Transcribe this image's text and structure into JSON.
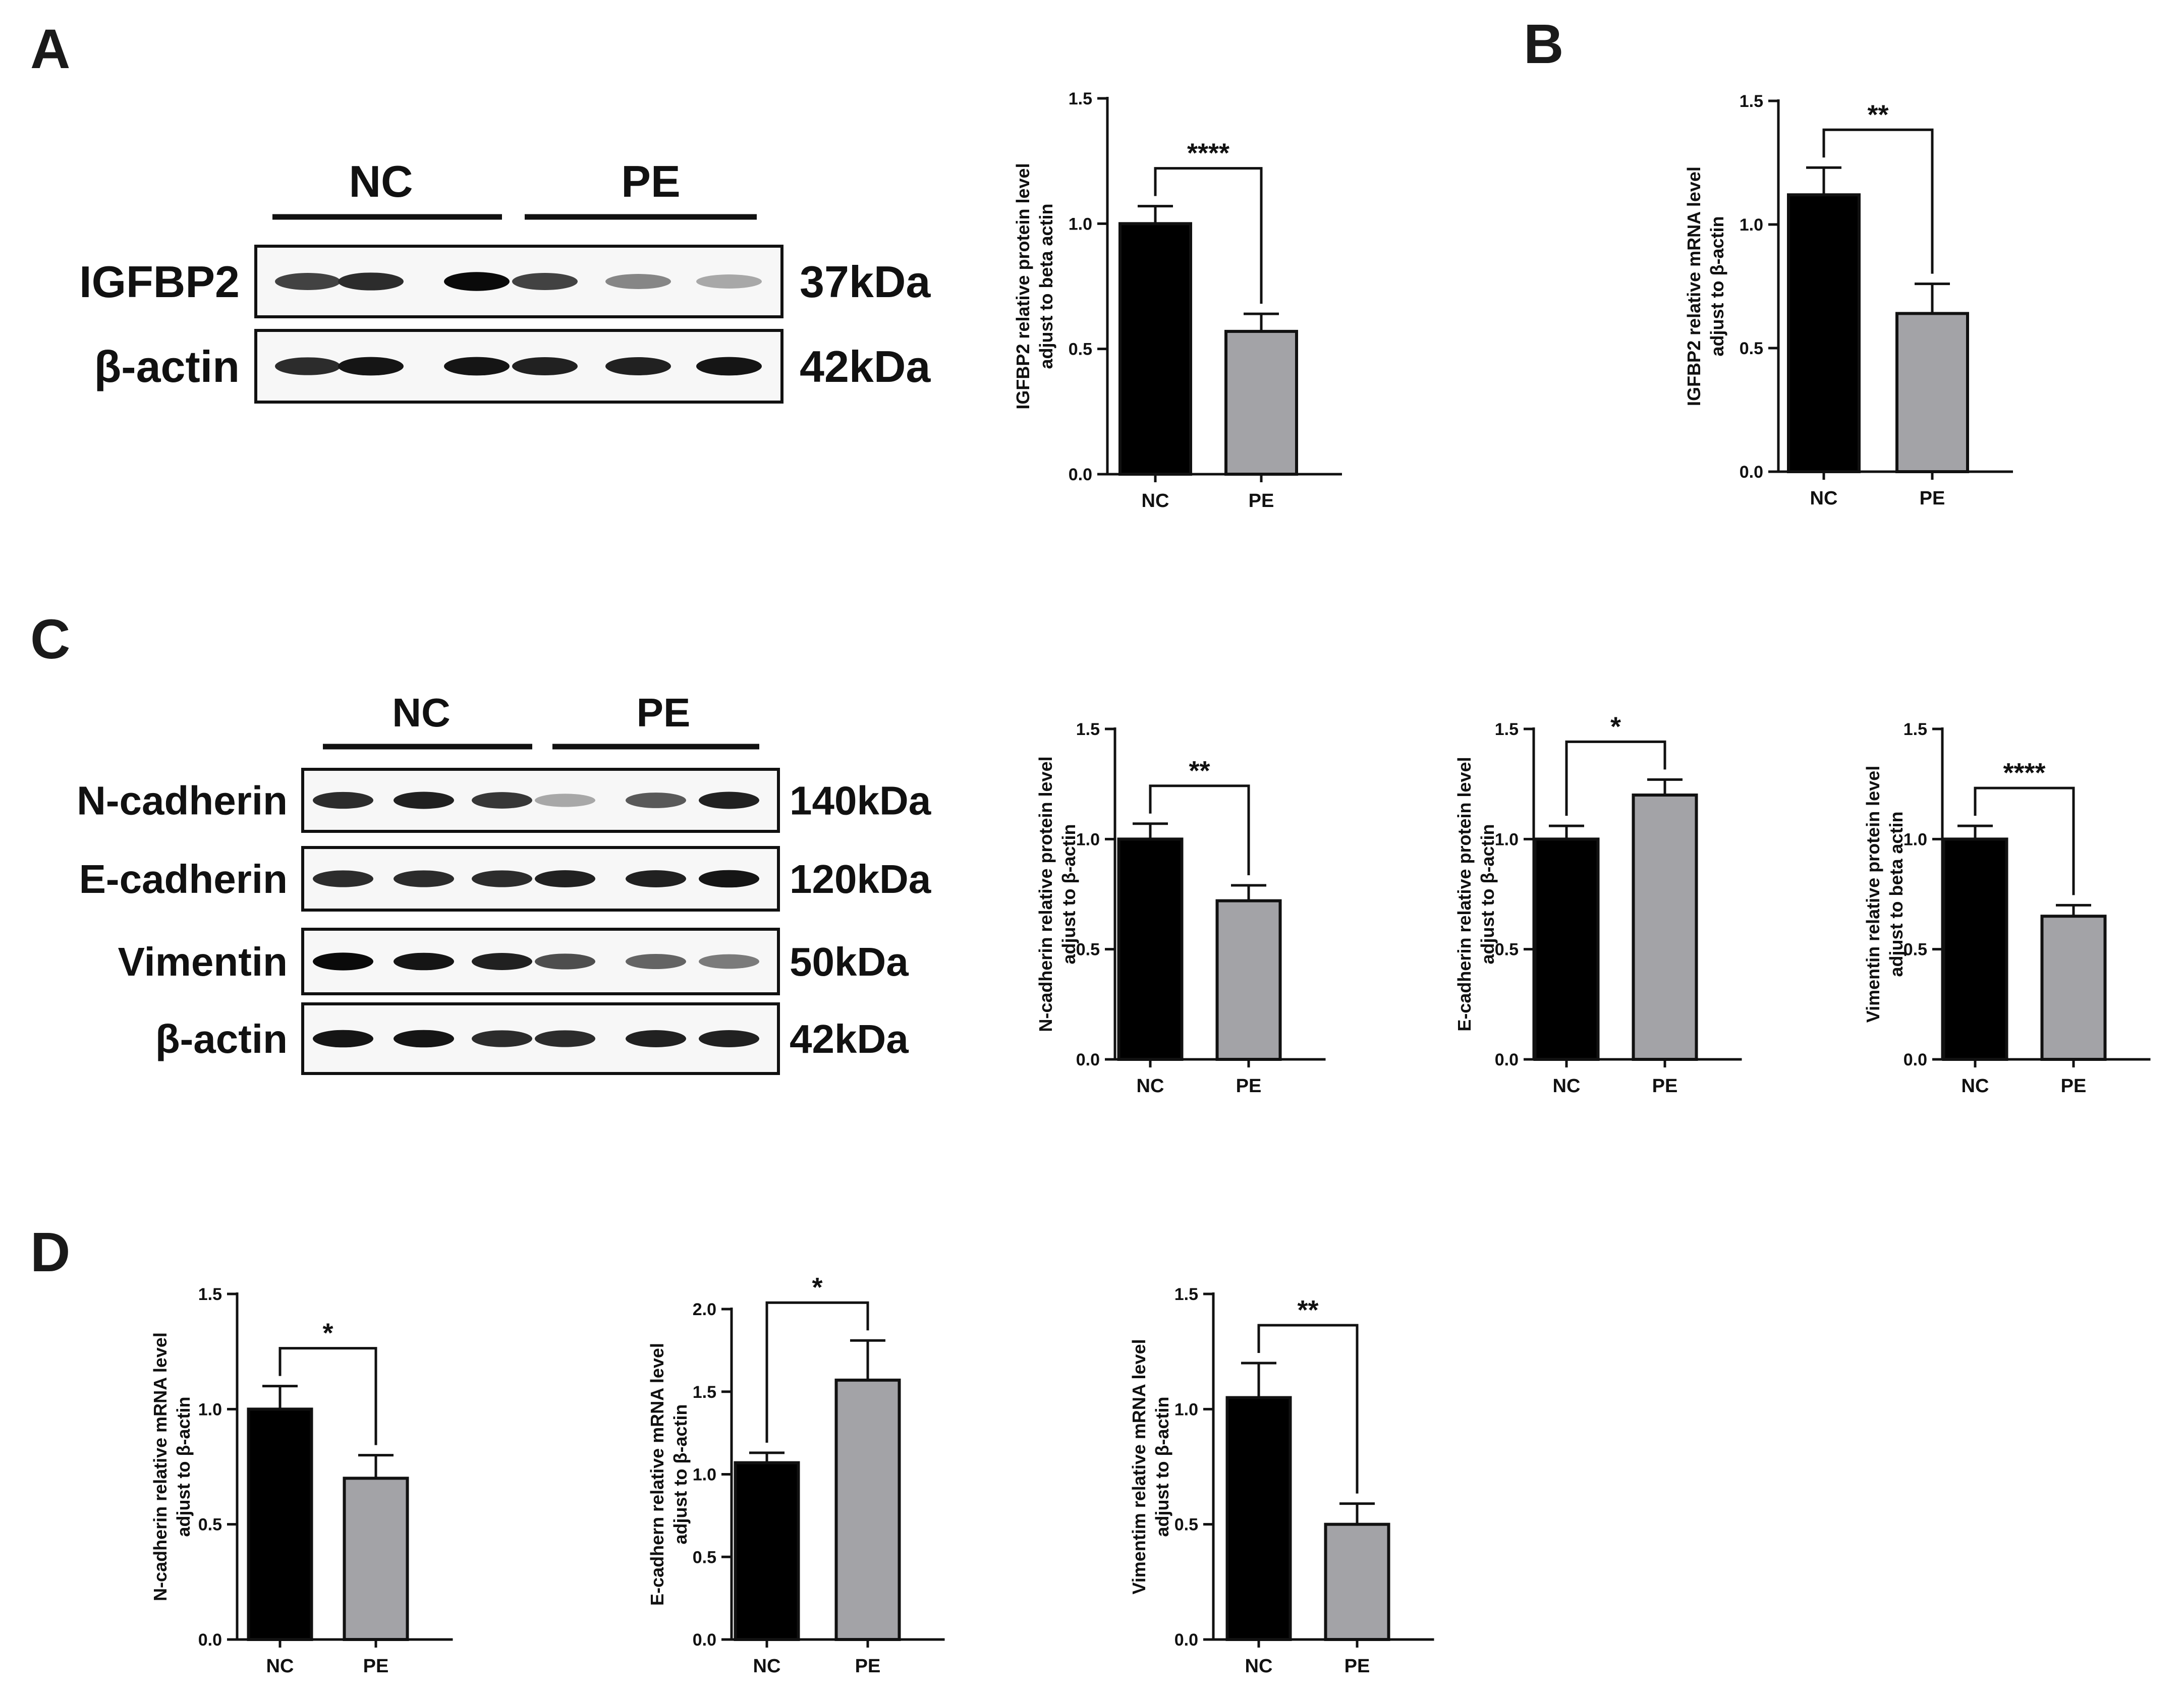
{
  "panels": [
    "A",
    "B",
    "C",
    "D"
  ],
  "blots": [
    {
      "id": "A",
      "groups": [
        "NC",
        "PE"
      ],
      "rows": [
        {
          "protein": "IGFBP2",
          "mw": "37kDa",
          "intensities": [
            0.75,
            0.85,
            1.0,
            0.75,
            0.45,
            0.3
          ]
        },
        {
          "protein": "β-actin",
          "mw": "42kDa",
          "intensities": [
            0.85,
            0.95,
            0.95,
            0.9,
            0.9,
            0.95
          ]
        }
      ]
    },
    {
      "id": "C",
      "groups": [
        "NC",
        "PE"
      ],
      "rows": [
        {
          "protein": "N-cadherin",
          "mw": "140kDa",
          "intensities": [
            0.85,
            0.9,
            0.8,
            0.3,
            0.65,
            0.9
          ]
        },
        {
          "protein": "E-cadherin",
          "mw": "120kDa",
          "intensities": [
            0.85,
            0.85,
            0.85,
            0.9,
            0.9,
            0.95
          ]
        },
        {
          "protein": "Vimentin",
          "mw": "50kDa",
          "intensities": [
            1.0,
            0.95,
            0.9,
            0.7,
            0.6,
            0.5
          ]
        },
        {
          "protein": "β-actin",
          "mw": "42kDa",
          "intensities": [
            0.95,
            0.95,
            0.85,
            0.85,
            0.9,
            0.9
          ]
        }
      ]
    }
  ],
  "chart_data": [
    {
      "type": "bar",
      "panel": "A",
      "categories": [
        "NC",
        "PE"
      ],
      "values": [
        1.0,
        0.57
      ],
      "errors": [
        0.07,
        0.07
      ],
      "ylabel": [
        "IGFBP2 relative protein  level",
        "adjust to beta actin"
      ],
      "ylim": [
        0,
        1.5
      ],
      "ticks": [
        "0.0",
        "0.5",
        "1.0",
        "1.5"
      ],
      "significance": "****",
      "colors": [
        "#000000",
        "#a3a3a7"
      ]
    },
    {
      "type": "bar",
      "panel": "B",
      "categories": [
        "NC",
        "PE"
      ],
      "values": [
        1.12,
        0.64
      ],
      "errors": [
        0.11,
        0.12
      ],
      "ylabel": [
        "IGFBP2 relative mRNA level",
        "adjust to β-actin"
      ],
      "ylim": [
        0,
        1.5
      ],
      "ticks": [
        "0.0",
        "0.5",
        "1.0",
        "1.5"
      ],
      "significance": "**",
      "colors": [
        "#000000",
        "#a3a3a7"
      ]
    },
    {
      "type": "bar",
      "panel": "C",
      "categories": [
        "NC",
        "PE"
      ],
      "values": [
        1.0,
        0.72
      ],
      "errors": [
        0.07,
        0.07
      ],
      "ylabel": [
        "N-cadherin relative protein level",
        "adjust to β-actin"
      ],
      "ylim": [
        0,
        1.5
      ],
      "ticks": [
        "0.0",
        "0.5",
        "1.0",
        "1.5"
      ],
      "significance": "**",
      "colors": [
        "#000000",
        "#a3a3a7"
      ]
    },
    {
      "type": "bar",
      "panel": "C",
      "categories": [
        "NC",
        "PE"
      ],
      "values": [
        1.0,
        1.2
      ],
      "errors": [
        0.06,
        0.07
      ],
      "ylabel": [
        "E-cadherin relative protein level",
        "adjust to β-actin"
      ],
      "ylim": [
        0,
        1.5
      ],
      "ticks": [
        "0.0",
        "0.5",
        "1.0",
        "1.5"
      ],
      "significance": "*",
      "colors": [
        "#000000",
        "#a3a3a7"
      ]
    },
    {
      "type": "bar",
      "panel": "C",
      "categories": [
        "NC",
        "PE"
      ],
      "values": [
        1.0,
        0.65
      ],
      "errors": [
        0.06,
        0.05
      ],
      "ylabel": [
        "Vimentin relative protein  level",
        "adjust to beta actin"
      ],
      "ylim": [
        0,
        1.5
      ],
      "ticks": [
        "0.0",
        "0.5",
        "1.0",
        "1.5"
      ],
      "significance": "****",
      "colors": [
        "#000000",
        "#a3a3a7"
      ]
    },
    {
      "type": "bar",
      "panel": "D",
      "categories": [
        "NC",
        "PE"
      ],
      "values": [
        1.0,
        0.7
      ],
      "errors": [
        0.1,
        0.1
      ],
      "ylabel": [
        "N-cadherin relative mRNA level",
        "adjust to β-actin"
      ],
      "ylim": [
        0,
        1.5
      ],
      "ticks": [
        "0.0",
        "0.5",
        "1.0",
        "1.5"
      ],
      "significance": "*",
      "colors": [
        "#000000",
        "#a3a3a7"
      ]
    },
    {
      "type": "bar",
      "panel": "D",
      "categories": [
        "NC",
        "PE"
      ],
      "values": [
        1.07,
        1.57
      ],
      "errors": [
        0.06,
        0.24
      ],
      "ylabel": [
        "E-cadhern relative mRNA level",
        "adjust to β-actin"
      ],
      "ylim": [
        0,
        2.0
      ],
      "ticks": [
        "0.0",
        "0.5",
        "1.0",
        "1.5",
        "2.0"
      ],
      "significance": "*",
      "colors": [
        "#000000",
        "#a3a3a7"
      ]
    },
    {
      "type": "bar",
      "panel": "D",
      "categories": [
        "NC",
        "PE"
      ],
      "values": [
        1.05,
        0.5
      ],
      "errors": [
        0.15,
        0.09
      ],
      "ylabel": [
        "Vimentim relative mRNA level",
        "adjust to β-actin"
      ],
      "ylim": [
        0,
        1.5
      ],
      "ticks": [
        "0.0",
        "0.5",
        "1.0",
        "1.5"
      ],
      "significance": "**",
      "colors": [
        "#000000",
        "#a3a3a7"
      ]
    }
  ]
}
